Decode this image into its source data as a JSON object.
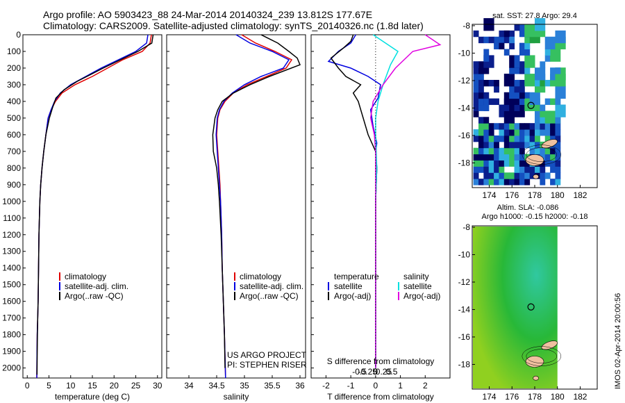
{
  "header": {
    "line1": "Argo profile: AO 5903423_88 24-Mar-2014 20140324_239 13.812S 177.67E",
    "line2": "Climatology: CARS2009. Satellite-adjusted climatology: synTS_20140326.nc (1.8d later)"
  },
  "depth_axis": {
    "range": [
      0,
      2060
    ],
    "ticks": [
      0,
      100,
      200,
      300,
      400,
      500,
      600,
      700,
      800,
      900,
      1000,
      1100,
      1200,
      1300,
      1400,
      1500,
      1600,
      1700,
      1800,
      1900,
      2000
    ]
  },
  "colors": {
    "climatology": "#e00000",
    "satellite": "#0000e0",
    "argo": "#000000",
    "satellite_salinity": "#00e0e0",
    "argo_salinity": "#e000e0",
    "ocean_low": "#00005a",
    "ocean_mid": "#2a6fd4",
    "ocean_high": "#36c060",
    "land": "#f0c0a0",
    "sla_field": "#30c030"
  },
  "chart_data": [
    {
      "type": "line",
      "name": "temperature-panel",
      "xlabel": "temperature (deg C)",
      "xlim": [
        -1,
        31
      ],
      "xticks": [
        0,
        5,
        10,
        15,
        20,
        25,
        30
      ],
      "ylim": [
        0,
        2060
      ],
      "legend": [
        "climatology",
        "satellite-adj. clim.",
        "Argo(..raw -QC)"
      ],
      "series": [
        {
          "name": "climatology",
          "color": "#e00000",
          "x": [
            28.6,
            28.3,
            26.5,
            22.0,
            18.5,
            15.0,
            11.0,
            8.0,
            6.5,
            5.5,
            4.8,
            4.3,
            3.8,
            3.4,
            3.1,
            2.9,
            2.7,
            2.6,
            2.5,
            2.4,
            2.3,
            2.25,
            2.2
          ],
          "y": [
            0,
            50,
            100,
            150,
            200,
            250,
            300,
            350,
            400,
            450,
            500,
            600,
            700,
            800,
            900,
            1000,
            1200,
            1400,
            1600,
            1700,
            1800,
            1900,
            2060
          ]
        },
        {
          "name": "satellite",
          "color": "#0000e0",
          "x": [
            27.8,
            27.5,
            25.0,
            21.0,
            17.0,
            13.5,
            10.0,
            7.6,
            6.3,
            5.5,
            4.8,
            4.3,
            3.8,
            3.4,
            3.1,
            2.9,
            2.7,
            2.6,
            2.5,
            2.4,
            2.3,
            2.25,
            2.2
          ],
          "y": [
            0,
            50,
            100,
            150,
            200,
            250,
            300,
            350,
            400,
            450,
            500,
            600,
            700,
            800,
            900,
            1000,
            1200,
            1400,
            1600,
            1700,
            1800,
            1900,
            2060
          ]
        },
        {
          "name": "argo",
          "color": "#000000",
          "x": [
            29.0,
            28.7,
            25.5,
            21.5,
            17.5,
            14.5,
            11.5,
            8.5,
            6.6,
            5.8,
            5.1,
            4.3,
            3.8,
            3.4,
            3.1,
            2.9,
            2.7,
            2.6,
            2.5,
            2.4,
            2.35,
            2.3,
            2.25
          ],
          "y": [
            0,
            50,
            100,
            150,
            200,
            240,
            280,
            330,
            380,
            440,
            500,
            600,
            700,
            800,
            900,
            1000,
            1200,
            1400,
            1600,
            1700,
            1800,
            1900,
            2040
          ]
        }
      ]
    },
    {
      "type": "line",
      "name": "salinity-panel",
      "xlabel": "salinity",
      "xlim": [
        33.6,
        36.1
      ],
      "xticks": [
        34,
        34.5,
        35,
        35.5,
        36
      ],
      "xticklabels": [
        "34",
        "34.5",
        "35",
        "35.5",
        "36"
      ],
      "ylim": [
        0,
        2060
      ],
      "legend": [
        "climatology",
        "satellite-adj. clim.",
        "Argo(..raw -QC)"
      ],
      "annotation": [
        "US ARGO PROJECT",
        "PI: STEPHEN RISER"
      ],
      "series": [
        {
          "name": "climatology",
          "color": "#e00000",
          "x": [
            34.95,
            35.2,
            35.55,
            35.85,
            35.75,
            35.4,
            35.05,
            34.8,
            34.65,
            34.56,
            34.52,
            34.5,
            34.52,
            34.54,
            34.56,
            34.57,
            34.59,
            34.6,
            34.62,
            34.63,
            34.64,
            34.66
          ],
          "y": [
            0,
            50,
            100,
            150,
            200,
            250,
            300,
            350,
            400,
            450,
            500,
            600,
            700,
            800,
            900,
            1000,
            1200,
            1400,
            1600,
            1700,
            1800,
            2060
          ]
        },
        {
          "name": "satellite",
          "color": "#0000e0",
          "x": [
            34.85,
            35.1,
            35.5,
            35.8,
            35.7,
            35.3,
            35.0,
            34.78,
            34.63,
            34.55,
            34.51,
            34.49,
            34.51,
            34.53,
            34.55,
            34.57,
            34.59,
            34.6,
            34.62,
            34.63,
            34.64,
            34.66
          ],
          "y": [
            0,
            50,
            100,
            150,
            200,
            250,
            300,
            350,
            400,
            450,
            500,
            600,
            700,
            800,
            900,
            1000,
            1200,
            1400,
            1600,
            1700,
            1800,
            2060
          ]
        },
        {
          "name": "argo",
          "color": "#000000",
          "x": [
            35.3,
            35.6,
            35.8,
            35.95,
            36.0,
            35.45,
            35.1,
            34.8,
            34.6,
            34.52,
            34.47,
            34.43,
            34.44,
            34.5,
            34.53,
            34.55,
            34.58,
            34.6,
            34.62,
            34.63,
            34.64,
            34.65
          ],
          "y": [
            0,
            50,
            100,
            140,
            180,
            250,
            300,
            350,
            400,
            450,
            500,
            600,
            700,
            800,
            900,
            1000,
            1200,
            1400,
            1600,
            1700,
            1800,
            2000
          ]
        }
      ]
    },
    {
      "type": "line",
      "name": "difference-panel",
      "xlabel": "T difference from climatology",
      "xlim": [
        -2.6,
        3.0
      ],
      "xticks": [
        -2,
        -1,
        0,
        1,
        2
      ],
      "top_xlabel": "S difference from climatology",
      "top_xticklabels": [
        "-0.5",
        "-0.25",
        "0",
        "0.25",
        "0.5"
      ],
      "top_xticks": [
        -0.5,
        -0.25,
        0,
        0.25,
        0.5
      ],
      "ylim": [
        0,
        2060
      ],
      "legend": [
        "temperature",
        "satellite",
        "Argo(-adj)",
        "salinity",
        "satellite",
        "Argo(-adj)"
      ],
      "series": [
        {
          "name": "temperature-satellite",
          "color": "#0000e0",
          "x": [
            -0.8,
            -1.0,
            -1.5,
            -1.9,
            -1.0,
            -0.3,
            0.2,
            0.1,
            -0.2,
            -0.1,
            0.05,
            0.0,
            0.05,
            0.0,
            0.0,
            0.0,
            0.0,
            0.0,
            0.0
          ],
          "y": [
            0,
            50,
            100,
            160,
            200,
            250,
            300,
            380,
            450,
            550,
            650,
            700,
            800,
            1000,
            1200,
            1400,
            1600,
            1800,
            2000
          ]
        },
        {
          "name": "temperature-argo",
          "color": "#000000",
          "x": [
            -0.9,
            -1.0,
            -1.3,
            -1.8,
            -1.5,
            -1.2,
            -0.6,
            -0.9,
            -0.7,
            -0.5,
            -0.3,
            0.0,
            0.05,
            0.0,
            0.0,
            0.0,
            0.0,
            0.0,
            0.0
          ],
          "y": [
            0,
            40,
            80,
            140,
            200,
            250,
            300,
            350,
            400,
            500,
            600,
            700,
            800,
            1000,
            1200,
            1400,
            1600,
            1800,
            2000
          ]
        },
        {
          "name": "salinity-satellite",
          "color": "#00e0e0",
          "x": [
            -0.1,
            0.5,
            0.9,
            0.6,
            0.3,
            0.1,
            0.0,
            0.0,
            0.05,
            0.0,
            0.0,
            0.0,
            0.0,
            0.0
          ],
          "y": [
            0,
            60,
            100,
            180,
            300,
            400,
            500,
            600,
            800,
            1000,
            1300,
            1600,
            1800,
            2000
          ]
        },
        {
          "name": "salinity-argo",
          "color": "#e000e0",
          "x": [
            2.0,
            2.6,
            1.5,
            0.8,
            0.3,
            -0.1,
            -0.2,
            -0.05,
            0.0,
            0.0,
            0.0,
            0.0,
            0.0
          ],
          "y": [
            0,
            60,
            100,
            200,
            300,
            400,
            500,
            600,
            700,
            1000,
            1400,
            1800,
            2000
          ]
        }
      ]
    },
    {
      "type": "heatmap",
      "name": "sst-map",
      "title": "sat. SST: 27.8 Argo: 29.4",
      "xlim": [
        172.5,
        183.5
      ],
      "xticks": [
        174,
        176,
        178,
        180,
        182
      ],
      "ylim": [
        -19.8,
        -7.9
      ],
      "yticks": [
        -8,
        -10,
        -12,
        -14,
        -16,
        -18
      ],
      "data_extent_lon": [
        172.5,
        180
      ],
      "argo_position": {
        "lon": 177.67,
        "lat": -13.812
      }
    },
    {
      "type": "heatmap",
      "name": "sla-map",
      "title_line1": "Altim. SLA: -0.086",
      "title_line2": "Argo h1000: -0.15 h2000: -0.18",
      "xlim": [
        172.5,
        183.5
      ],
      "xticks": [
        174,
        176,
        178,
        180,
        182
      ],
      "ylim": [
        -19.8,
        -7.9
      ],
      "yticks": [
        -8,
        -10,
        -12,
        -14,
        -16,
        -18
      ],
      "data_extent_lon": [
        172.5,
        180
      ],
      "argo_position": {
        "lon": 177.67,
        "lat": -13.812
      }
    }
  ],
  "footer": {
    "imos_stamp": "IMOS 02-Apr-2014 20:00:56"
  }
}
